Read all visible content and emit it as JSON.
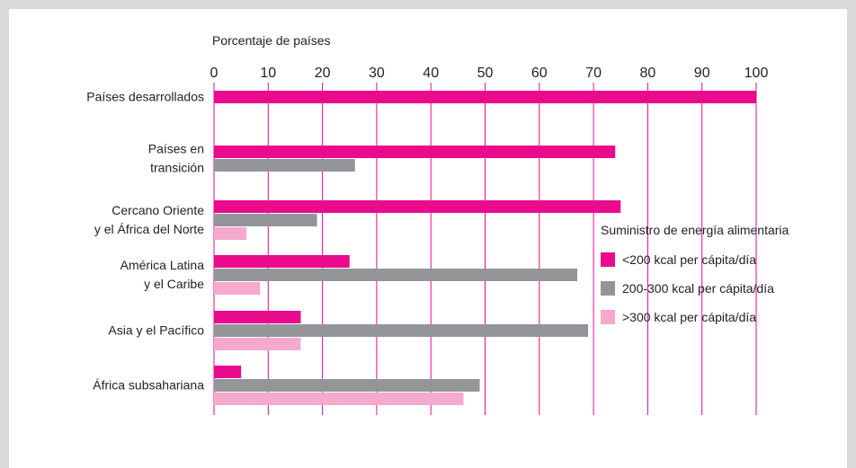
{
  "chart_data": {
    "type": "bar",
    "orientation": "horizontal",
    "xlabel": "Porcentaje de países",
    "xlim": [
      0,
      100
    ],
    "xticks": [
      0,
      10,
      20,
      30,
      40,
      50,
      60,
      70,
      80,
      90,
      100
    ],
    "grid": true,
    "categories": [
      [
        "Países desarrollados"
      ],
      [
        "Países en",
        "transición"
      ],
      [
        "Cercano Oriente",
        "y el África del Norte"
      ],
      [
        "América Latina",
        "y el Caribe"
      ],
      [
        "Asia y el Pacífico"
      ],
      [
        "África subsahariana"
      ]
    ],
    "legend_title": "Suministro de energía alimentaria",
    "legend_position": "right",
    "series": [
      {
        "name": "<200 kcal per cápita/día",
        "color": "#ea0a8c",
        "values": [
          100,
          74,
          75,
          25,
          16,
          5
        ]
      },
      {
        "name": "200-300 kcal per cápita/día",
        "color": "#939598",
        "values": [
          0,
          26,
          19,
          67,
          69,
          49
        ]
      },
      {
        "name": ">300 kcal per cápita/día",
        "color": "#f5a9cd",
        "values": [
          0,
          0,
          6,
          8.5,
          16,
          46
        ]
      }
    ]
  }
}
